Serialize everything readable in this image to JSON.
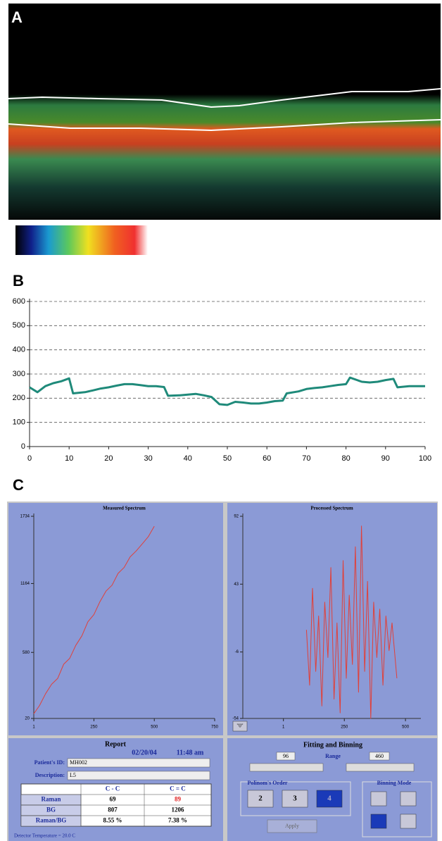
{
  "panels": {
    "a_label": "A",
    "b_label": "B",
    "c_label": "C"
  },
  "chart_data": [
    {
      "type": "line",
      "x": [
        0,
        2,
        4,
        6,
        8,
        10,
        11,
        14,
        16,
        18,
        20,
        22,
        24,
        26,
        28,
        30,
        32,
        34,
        35,
        38,
        40,
        42,
        44,
        46,
        48,
        50,
        52,
        54,
        56,
        58,
        60,
        62,
        64,
        65,
        68,
        70,
        72,
        74,
        76,
        78,
        80,
        81,
        84,
        86,
        88,
        90,
        92,
        93,
        96,
        100
      ],
      "series": [
        {
          "color": "#1f8a7a",
          "values": [
            245,
            225,
            250,
            262,
            270,
            282,
            220,
            225,
            232,
            240,
            245,
            252,
            258,
            258,
            254,
            250,
            250,
            246,
            210,
            212,
            215,
            218,
            212,
            205,
            175,
            172,
            185,
            182,
            178,
            178,
            182,
            188,
            190,
            220,
            228,
            238,
            242,
            245,
            250,
            255,
            258,
            285,
            268,
            265,
            268,
            275,
            280,
            245,
            250,
            250
          ]
        }
      ],
      "xlim": [
        0,
        100
      ],
      "ylim": [
        0,
        600
      ],
      "xticks": [
        0,
        10,
        20,
        30,
        40,
        50,
        60,
        70,
        80,
        90,
        100
      ],
      "yticks": [
        0,
        100,
        200,
        300,
        400,
        500,
        600
      ],
      "grid": true
    },
    {
      "type": "line",
      "title": "Measured Spectrum",
      "x": [
        1,
        25,
        50,
        75,
        100,
        125,
        150,
        175,
        200,
        225,
        250,
        275,
        300,
        325,
        350,
        375,
        400,
        425,
        450,
        475,
        500
      ],
      "series": [
        {
          "color": "#e0403a",
          "values": [
            60,
            130,
            230,
            310,
            360,
            480,
            530,
            640,
            720,
            840,
            900,
            1010,
            1100,
            1150,
            1250,
            1300,
            1390,
            1440,
            1500,
            1560,
            1650
          ]
        }
      ],
      "xlim": [
        1,
        750
      ],
      "ylim": [
        20,
        1734
      ],
      "xticks": [
        1,
        250,
        500,
        750
      ],
      "yticks": [
        20,
        580,
        1164,
        1734
      ],
      "grid": false
    },
    {
      "type": "line",
      "title": "Processed Spectrum",
      "x": [
        95,
        108,
        120,
        133,
        145,
        158,
        170,
        183,
        195,
        208,
        220,
        233,
        245,
        258,
        270,
        283,
        295,
        308,
        320,
        333,
        345,
        358,
        370,
        383,
        395,
        408,
        420,
        433,
        445,
        465
      ],
      "series": [
        {
          "color": "#e0403a",
          "values": [
            10,
            -30,
            40,
            -20,
            20,
            -45,
            30,
            -10,
            55,
            -40,
            15,
            -50,
            60,
            -25,
            35,
            -15,
            70,
            -35,
            85,
            -20,
            45,
            -54,
            30,
            -10,
            25,
            -30,
            20,
            -5,
            15,
            -25
          ]
        }
      ],
      "xlim": [
        -165,
        563
      ],
      "ylim": [
        -54,
        92
      ],
      "xticks": [
        1,
        250,
        500
      ],
      "yticks": [
        -54,
        -6,
        43,
        92
      ],
      "grid": false
    }
  ],
  "zero_button": "\"0\"",
  "report": {
    "title": "Report",
    "date": "02/20/04",
    "time": "11:48 am",
    "patient_label": "Patient's ID:",
    "patient_id": "MH002",
    "desc_label": "Description:",
    "desc": "L5",
    "table": {
      "header": [
        "C - C",
        "C = C"
      ],
      "rows": [
        [
          "Raman",
          "69",
          "89"
        ],
        [
          "BG",
          "807",
          "1206"
        ],
        [
          "Raman/BG",
          "8.55 %",
          "7.38 %"
        ]
      ]
    },
    "detector": "Detector Temperature = 20.0 C"
  },
  "fitting": {
    "title": "Fitting and Binning",
    "range_label": "Range",
    "range_low": "96",
    "range_high": "460",
    "order_title": "Polinom's Order",
    "orders": [
      "2",
      "3",
      "4"
    ],
    "binning_title": "Binning Mode",
    "apply": "Apply"
  }
}
